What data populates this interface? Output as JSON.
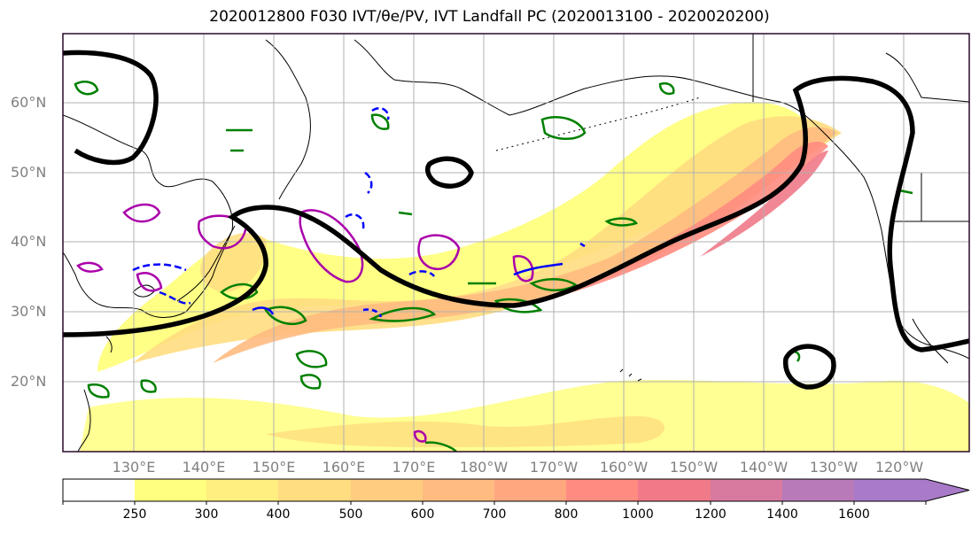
{
  "title": "2020012800 F030 IVT/θe/PV, IVT Landfall PC (2020013100 - 2020020200)",
  "latitude_labels": [
    "60°N",
    "50°N",
    "40°N",
    "30°N",
    "20°N"
  ],
  "longitude_labels": [
    "130°E",
    "140°E",
    "150°E",
    "160°E",
    "170°E",
    "180°W",
    "170°W",
    "160°W",
    "150°W",
    "140°W",
    "130°W",
    "120°W"
  ],
  "colorbar": {
    "ticks": [
      "250",
      "300",
      "400",
      "500",
      "600",
      "700",
      "800",
      "1000",
      "1200",
      "1400",
      "1600"
    ],
    "colors": [
      "#ffffff",
      "#ffff80",
      "#ffee80",
      "#ffdd80",
      "#ffcc80",
      "#ffbb80",
      "#ffa880",
      "#ff8c80",
      "#f07a88",
      "#d87aa0",
      "#b87ab8",
      "#a87ac8"
    ]
  },
  "colors": {
    "ivt_contour": "#000000",
    "theta_e": "#008000",
    "pv_positive": "#aa00aa",
    "pv_negative": "#0000ff"
  }
}
